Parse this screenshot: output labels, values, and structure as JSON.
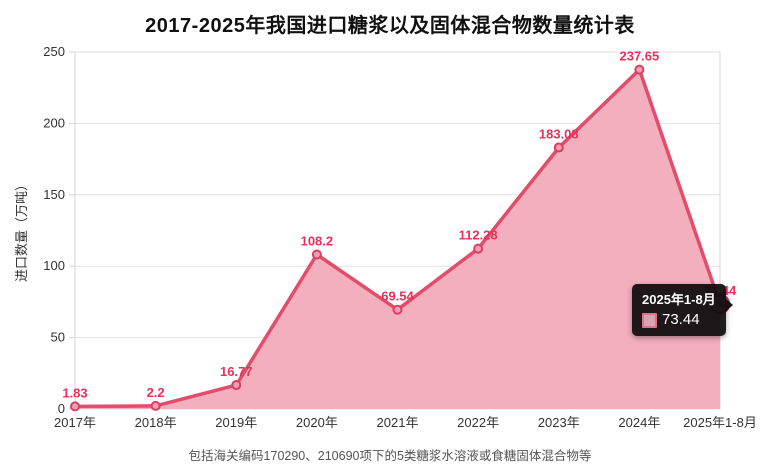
{
  "title": "2017-2025年我国进口糖浆以及固体混合物数量统计表",
  "footer": "包括海关编码170290、210690项下的5类糖浆水溶液或食糖固体混合物等",
  "tooltip": {
    "title": "2025年1-8月",
    "value": "73.44"
  },
  "chart_data": {
    "type": "area",
    "title": "2017-2025年我国进口糖浆以及固体混合物数量统计表",
    "categories": [
      "2017年",
      "2018年",
      "2019年",
      "2020年",
      "2021年",
      "2022年",
      "2023年",
      "2024年",
      "2025年1-8月"
    ],
    "values": [
      1.83,
      2.2,
      16.77,
      108.2,
      69.54,
      112.28,
      183.08,
      237.65,
      73.44
    ],
    "point_labels": [
      "1.83",
      "2.2",
      "16.77",
      "108.2",
      "69.54",
      "112.28",
      "183.08",
      "237.65",
      "73.44"
    ],
    "xlabel": "",
    "ylabel": "进口数量（万吨）",
    "ylim": [
      0,
      250
    ],
    "yticks": [
      0,
      50,
      100,
      150,
      200,
      250
    ],
    "grid": true,
    "legend_position": "none",
    "highlighted_point_index": 8,
    "colors": {
      "line": "#e14d6b",
      "area_fill": "#f3afbd",
      "marker_fill": "#f29fb2",
      "marker_stroke": "#d84065",
      "highlight_fill": "#ee8da3",
      "highlight_stroke": "#d23458",
      "value_label": "#e8315a",
      "grid_line": "#e2e2e2",
      "axis_line": "#d4d4d4",
      "axis_text": "#333333",
      "tooltip_bg": "#0c0c0c",
      "tooltip_swatch_border": "#e46f8b",
      "tooltip_swatch_fill": "#d9a4b2"
    }
  }
}
